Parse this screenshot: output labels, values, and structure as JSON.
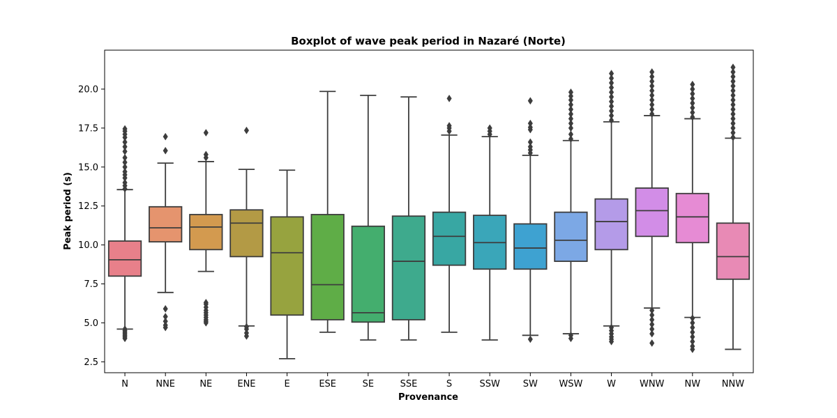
{
  "chart_data": {
    "type": "boxplot",
    "title": "Boxplot of wave peak period in Nazaré (Norte)",
    "xlabel": "Provenance",
    "ylabel": "Peak period (s)",
    "ylim": [
      1.8,
      22.5
    ],
    "yticks": [
      2.5,
      5.0,
      7.5,
      10.0,
      12.5,
      15.0,
      17.5,
      20.0
    ],
    "ytick_labels": [
      "2.5",
      "5.0",
      "7.5",
      "10.0",
      "12.5",
      "15.0",
      "17.5",
      "20.0"
    ],
    "grid": false,
    "legend": "none",
    "categories": [
      "N",
      "NNE",
      "NE",
      "ENE",
      "E",
      "ESE",
      "SE",
      "SSE",
      "S",
      "SSW",
      "SW",
      "WSW",
      "W",
      "WNW",
      "NW",
      "NNW"
    ],
    "colors": [
      "#e8808a",
      "#e5946e",
      "#d39a4f",
      "#b39a45",
      "#97a33f",
      "#5fad47",
      "#44ae6e",
      "#3eaa8d",
      "#38a7a3",
      "#3aa6b9",
      "#3ea2d1",
      "#7ca8e5",
      "#b49be8",
      "#d28de7",
      "#e68bd4",
      "#e88ab5"
    ],
    "boxes": [
      {
        "whisker_low": 4.6,
        "q1": 8.0,
        "median": 9.05,
        "q3": 10.25,
        "whisker_high": 13.55
      },
      {
        "whisker_low": 6.95,
        "q1": 10.2,
        "median": 11.1,
        "q3": 12.45,
        "whisker_high": 15.25
      },
      {
        "whisker_low": 8.3,
        "q1": 9.7,
        "median": 11.15,
        "q3": 11.95,
        "whisker_high": 15.35
      },
      {
        "whisker_low": 4.8,
        "q1": 9.25,
        "median": 11.4,
        "q3": 12.25,
        "whisker_high": 14.85
      },
      {
        "whisker_low": 2.7,
        "q1": 5.5,
        "median": 9.5,
        "q3": 11.8,
        "whisker_high": 14.8
      },
      {
        "whisker_low": 4.4,
        "q1": 5.2,
        "median": 7.45,
        "q3": 11.95,
        "whisker_high": 19.85
      },
      {
        "whisker_low": 3.9,
        "q1": 5.05,
        "median": 5.65,
        "q3": 11.2,
        "whisker_high": 19.6
      },
      {
        "whisker_low": 3.9,
        "q1": 5.2,
        "median": 8.95,
        "q3": 11.85,
        "whisker_high": 19.5
      },
      {
        "whisker_low": 4.4,
        "q1": 8.7,
        "median": 10.55,
        "q3": 12.1,
        "whisker_high": 17.05
      },
      {
        "whisker_low": 3.9,
        "q1": 8.45,
        "median": 10.15,
        "q3": 11.9,
        "whisker_high": 16.95
      },
      {
        "whisker_low": 4.2,
        "q1": 8.45,
        "median": 9.8,
        "q3": 11.35,
        "whisker_high": 15.75
      },
      {
        "whisker_low": 4.3,
        "q1": 8.95,
        "median": 10.3,
        "q3": 12.1,
        "whisker_high": 16.7
      },
      {
        "whisker_low": 4.8,
        "q1": 9.7,
        "median": 11.5,
        "q3": 12.95,
        "whisker_high": 17.9
      },
      {
        "whisker_low": 5.95,
        "q1": 10.55,
        "median": 12.2,
        "q3": 13.65,
        "whisker_high": 18.3
      },
      {
        "whisker_low": 5.35,
        "q1": 10.15,
        "median": 11.8,
        "q3": 13.3,
        "whisker_high": 18.1
      },
      {
        "whisker_low": 3.3,
        "q1": 7.8,
        "median": 9.25,
        "q3": 11.4,
        "whisker_high": 16.85
      }
    ],
    "fliers": [
      [
        4.0,
        4.1,
        4.2,
        4.3,
        4.4,
        4.5,
        4.6,
        13.6,
        13.8,
        14.0,
        14.3,
        14.5,
        14.7,
        15.0,
        15.3,
        15.6,
        16.0,
        16.3,
        16.6,
        16.9,
        17.1,
        17.3,
        17.45
      ],
      [
        4.7,
        4.85,
        5.1,
        5.4,
        5.9,
        16.05,
        16.95
      ],
      [
        5.0,
        5.1,
        5.2,
        5.35,
        5.5,
        5.65,
        5.8,
        6.0,
        6.2,
        6.3,
        15.6,
        15.8,
        17.2
      ],
      [
        4.15,
        4.35,
        4.6,
        4.75,
        17.35
      ],
      [],
      [],
      [],
      [],
      [
        17.3,
        17.5,
        17.65,
        19.4
      ],
      [
        17.1,
        17.3,
        17.5
      ],
      [
        3.95,
        15.9,
        16.1,
        16.3,
        16.6,
        17.4,
        17.55,
        17.8,
        19.25
      ],
      [
        4.0,
        4.2,
        16.8,
        17.1,
        17.5,
        17.8,
        18.1,
        18.4,
        18.7,
        19.0,
        19.3,
        19.55,
        19.8
      ],
      [
        3.8,
        3.95,
        4.1,
        4.3,
        4.5,
        4.7,
        18.0,
        18.3,
        18.6,
        18.9,
        19.2,
        19.5,
        19.8,
        20.1,
        20.4,
        20.7,
        21.0
      ],
      [
        3.7,
        4.3,
        4.6,
        4.9,
        5.2,
        5.5,
        5.8,
        18.4,
        18.7,
        19.0,
        19.3,
        19.6,
        19.9,
        20.2,
        20.5,
        20.8,
        21.1
      ],
      [
        3.3,
        3.5,
        3.8,
        4.1,
        4.4,
        4.7,
        5.0,
        5.3,
        18.2,
        18.5,
        18.8,
        19.1,
        19.4,
        19.7,
        20.0,
        20.3
      ],
      [
        16.9,
        17.2,
        17.5,
        17.8,
        18.1,
        18.4,
        18.7,
        19.0,
        19.3,
        19.6,
        19.9,
        20.2,
        20.5,
        20.8,
        21.1,
        21.4
      ]
    ]
  }
}
